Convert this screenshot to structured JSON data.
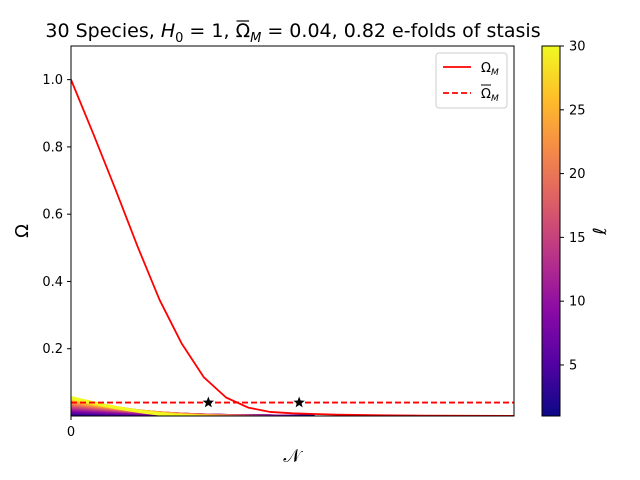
{
  "chart_data": {
    "type": "line",
    "title": {
      "prefix": "30 Species, ",
      "h0_symbol": "H",
      "h0_sub": "0",
      "h0_value": " = 1, ",
      "omega_symbol": "Ω",
      "omega_sub": "M",
      "omega_value": " = 0.04, 0.82 e-folds of stasis"
    },
    "xlabel": "𝒩",
    "ylabel": "Ω",
    "xlim": [
      0,
      1
    ],
    "ylim": [
      0,
      1.1
    ],
    "x_ticks": [
      0
    ],
    "y_ticks": [
      0.2,
      0.4,
      0.6,
      0.8,
      1.0
    ],
    "y_tick_labels": [
      "0.2",
      "0.4",
      "0.6",
      "0.8",
      "1.0"
    ],
    "series": [
      {
        "name": "Ω_M",
        "legend_symbol": "Ω",
        "legend_sub": "M",
        "style": "solid",
        "color": "#ff0000",
        "x": [
          0,
          0.05,
          0.1,
          0.15,
          0.2,
          0.25,
          0.3,
          0.35,
          0.4,
          0.45,
          0.5,
          0.55,
          0.6,
          0.7,
          0.8,
          0.9,
          1.0
        ],
        "y": [
          1.0,
          0.84,
          0.675,
          0.505,
          0.345,
          0.215,
          0.115,
          0.055,
          0.025,
          0.012,
          0.008,
          0.006,
          0.004,
          0.002,
          0.001,
          0.0005,
          0.0003
        ]
      },
      {
        "name": "Ω̄_M",
        "legend_symbol": "Ω",
        "legend_sub": "M",
        "legend_overline": true,
        "style": "dashed",
        "color": "#ff0000",
        "x": [
          0,
          1
        ],
        "y": [
          0.04,
          0.04
        ]
      }
    ],
    "stasis_markers": {
      "marker": "star",
      "color": "#000000",
      "points": [
        {
          "x": 0.31,
          "y": 0.04
        },
        {
          "x": 0.515,
          "y": 0.04
        }
      ]
    },
    "species_curves": {
      "count": 30,
      "ell_range": [
        1,
        30
      ],
      "start_y_min": 0.003,
      "start_y_max": 0.055,
      "fade_x_min": 0.28,
      "fade_x_max": 0.55
    },
    "colorbar": {
      "label": "ℓ",
      "cmap": "plasma",
      "range": [
        1,
        30
      ],
      "ticks": [
        5,
        10,
        15,
        20,
        25,
        30
      ],
      "tick_labels": [
        "5",
        "10",
        "15",
        "20",
        "25",
        "30"
      ],
      "colors": [
        "#0d0887",
        "#5302a3",
        "#8b0aa5",
        "#b83289",
        "#db5c68",
        "#f48849",
        "#febd2a",
        "#f0f921"
      ]
    },
    "legend": {
      "placement": "top-right"
    },
    "grid": false
  }
}
